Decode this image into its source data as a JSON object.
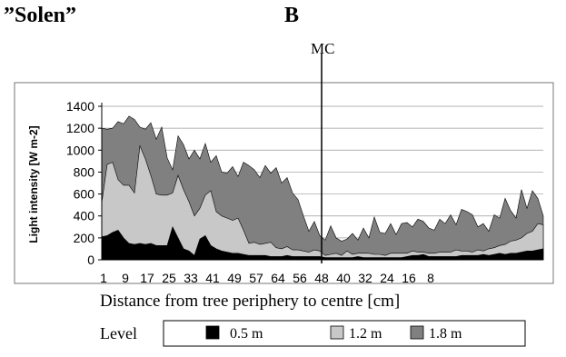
{
  "title_left": "”Solen”",
  "title_right": "B",
  "chart_data": {
    "type": "area",
    "ylabel": "Light intensity [W m-2]",
    "xlabel": "Distance from tree periphery to centre [cm]",
    "ylim": [
      0,
      1400
    ],
    "yticks": [
      0,
      200,
      400,
      600,
      800,
      1000,
      1200,
      1400
    ],
    "xtick_labels": [
      "1",
      "9",
      "17",
      "25",
      "33",
      "41",
      "49",
      "57",
      "64",
      "56",
      "48",
      "40",
      "32",
      "24",
      "16",
      "8"
    ],
    "grid": true,
    "annotation": "MC",
    "legend_title": "Level",
    "legend_position": "bottom",
    "series": [
      {
        "name": "1.8 m",
        "color": "#808080",
        "values": [
          1200,
          1190,
          1200,
          1260,
          1240,
          1310,
          1280,
          1210,
          1190,
          1250,
          1100,
          1210,
          930,
          820,
          1130,
          1050,
          920,
          1000,
          920,
          1060,
          890,
          950,
          800,
          790,
          850,
          760,
          890,
          860,
          820,
          750,
          860,
          790,
          840,
          700,
          750,
          610,
          550,
          400,
          260,
          350,
          220,
          180,
          310,
          200,
          170,
          190,
          240,
          180,
          290,
          200,
          390,
          250,
          240,
          330,
          230,
          330,
          340,
          300,
          370,
          350,
          290,
          270,
          370,
          330,
          410,
          320,
          460,
          440,
          410,
          300,
          330,
          260,
          410,
          380,
          560,
          450,
          380,
          640,
          470,
          630,
          560,
          400
        ]
      },
      {
        "name": "1.2 m",
        "color": "#c8c8c8",
        "values": [
          520,
          870,
          890,
          730,
          680,
          680,
          610,
          1040,
          920,
          770,
          600,
          590,
          590,
          610,
          770,
          640,
          530,
          400,
          470,
          590,
          630,
          440,
          400,
          380,
          360,
          380,
          270,
          150,
          160,
          140,
          150,
          160,
          110,
          100,
          120,
          90,
          90,
          80,
          70,
          90,
          80,
          40,
          50,
          60,
          40,
          80,
          50,
          60,
          60,
          60,
          50,
          50,
          40,
          60,
          60,
          60,
          60,
          80,
          70,
          70,
          60,
          60,
          70,
          70,
          70,
          90,
          80,
          80,
          70,
          90,
          80,
          100,
          110,
          130,
          140,
          170,
          180,
          200,
          240,
          260,
          330,
          320
        ]
      },
      {
        "name": "0.5 m",
        "color": "#000000",
        "values": [
          210,
          220,
          250,
          270,
          200,
          150,
          140,
          150,
          140,
          150,
          130,
          130,
          130,
          300,
          200,
          100,
          80,
          40,
          190,
          220,
          130,
          100,
          80,
          70,
          60,
          60,
          50,
          40,
          40,
          40,
          40,
          30,
          30,
          30,
          40,
          30,
          30,
          30,
          30,
          30,
          30,
          20,
          20,
          20,
          20,
          20,
          20,
          30,
          20,
          20,
          20,
          20,
          20,
          20,
          20,
          20,
          30,
          40,
          40,
          50,
          30,
          30,
          30,
          30,
          30,
          30,
          40,
          40,
          40,
          40,
          50,
          40,
          50,
          60,
          50,
          60,
          60,
          70,
          80,
          80,
          90,
          100
        ]
      }
    ]
  }
}
